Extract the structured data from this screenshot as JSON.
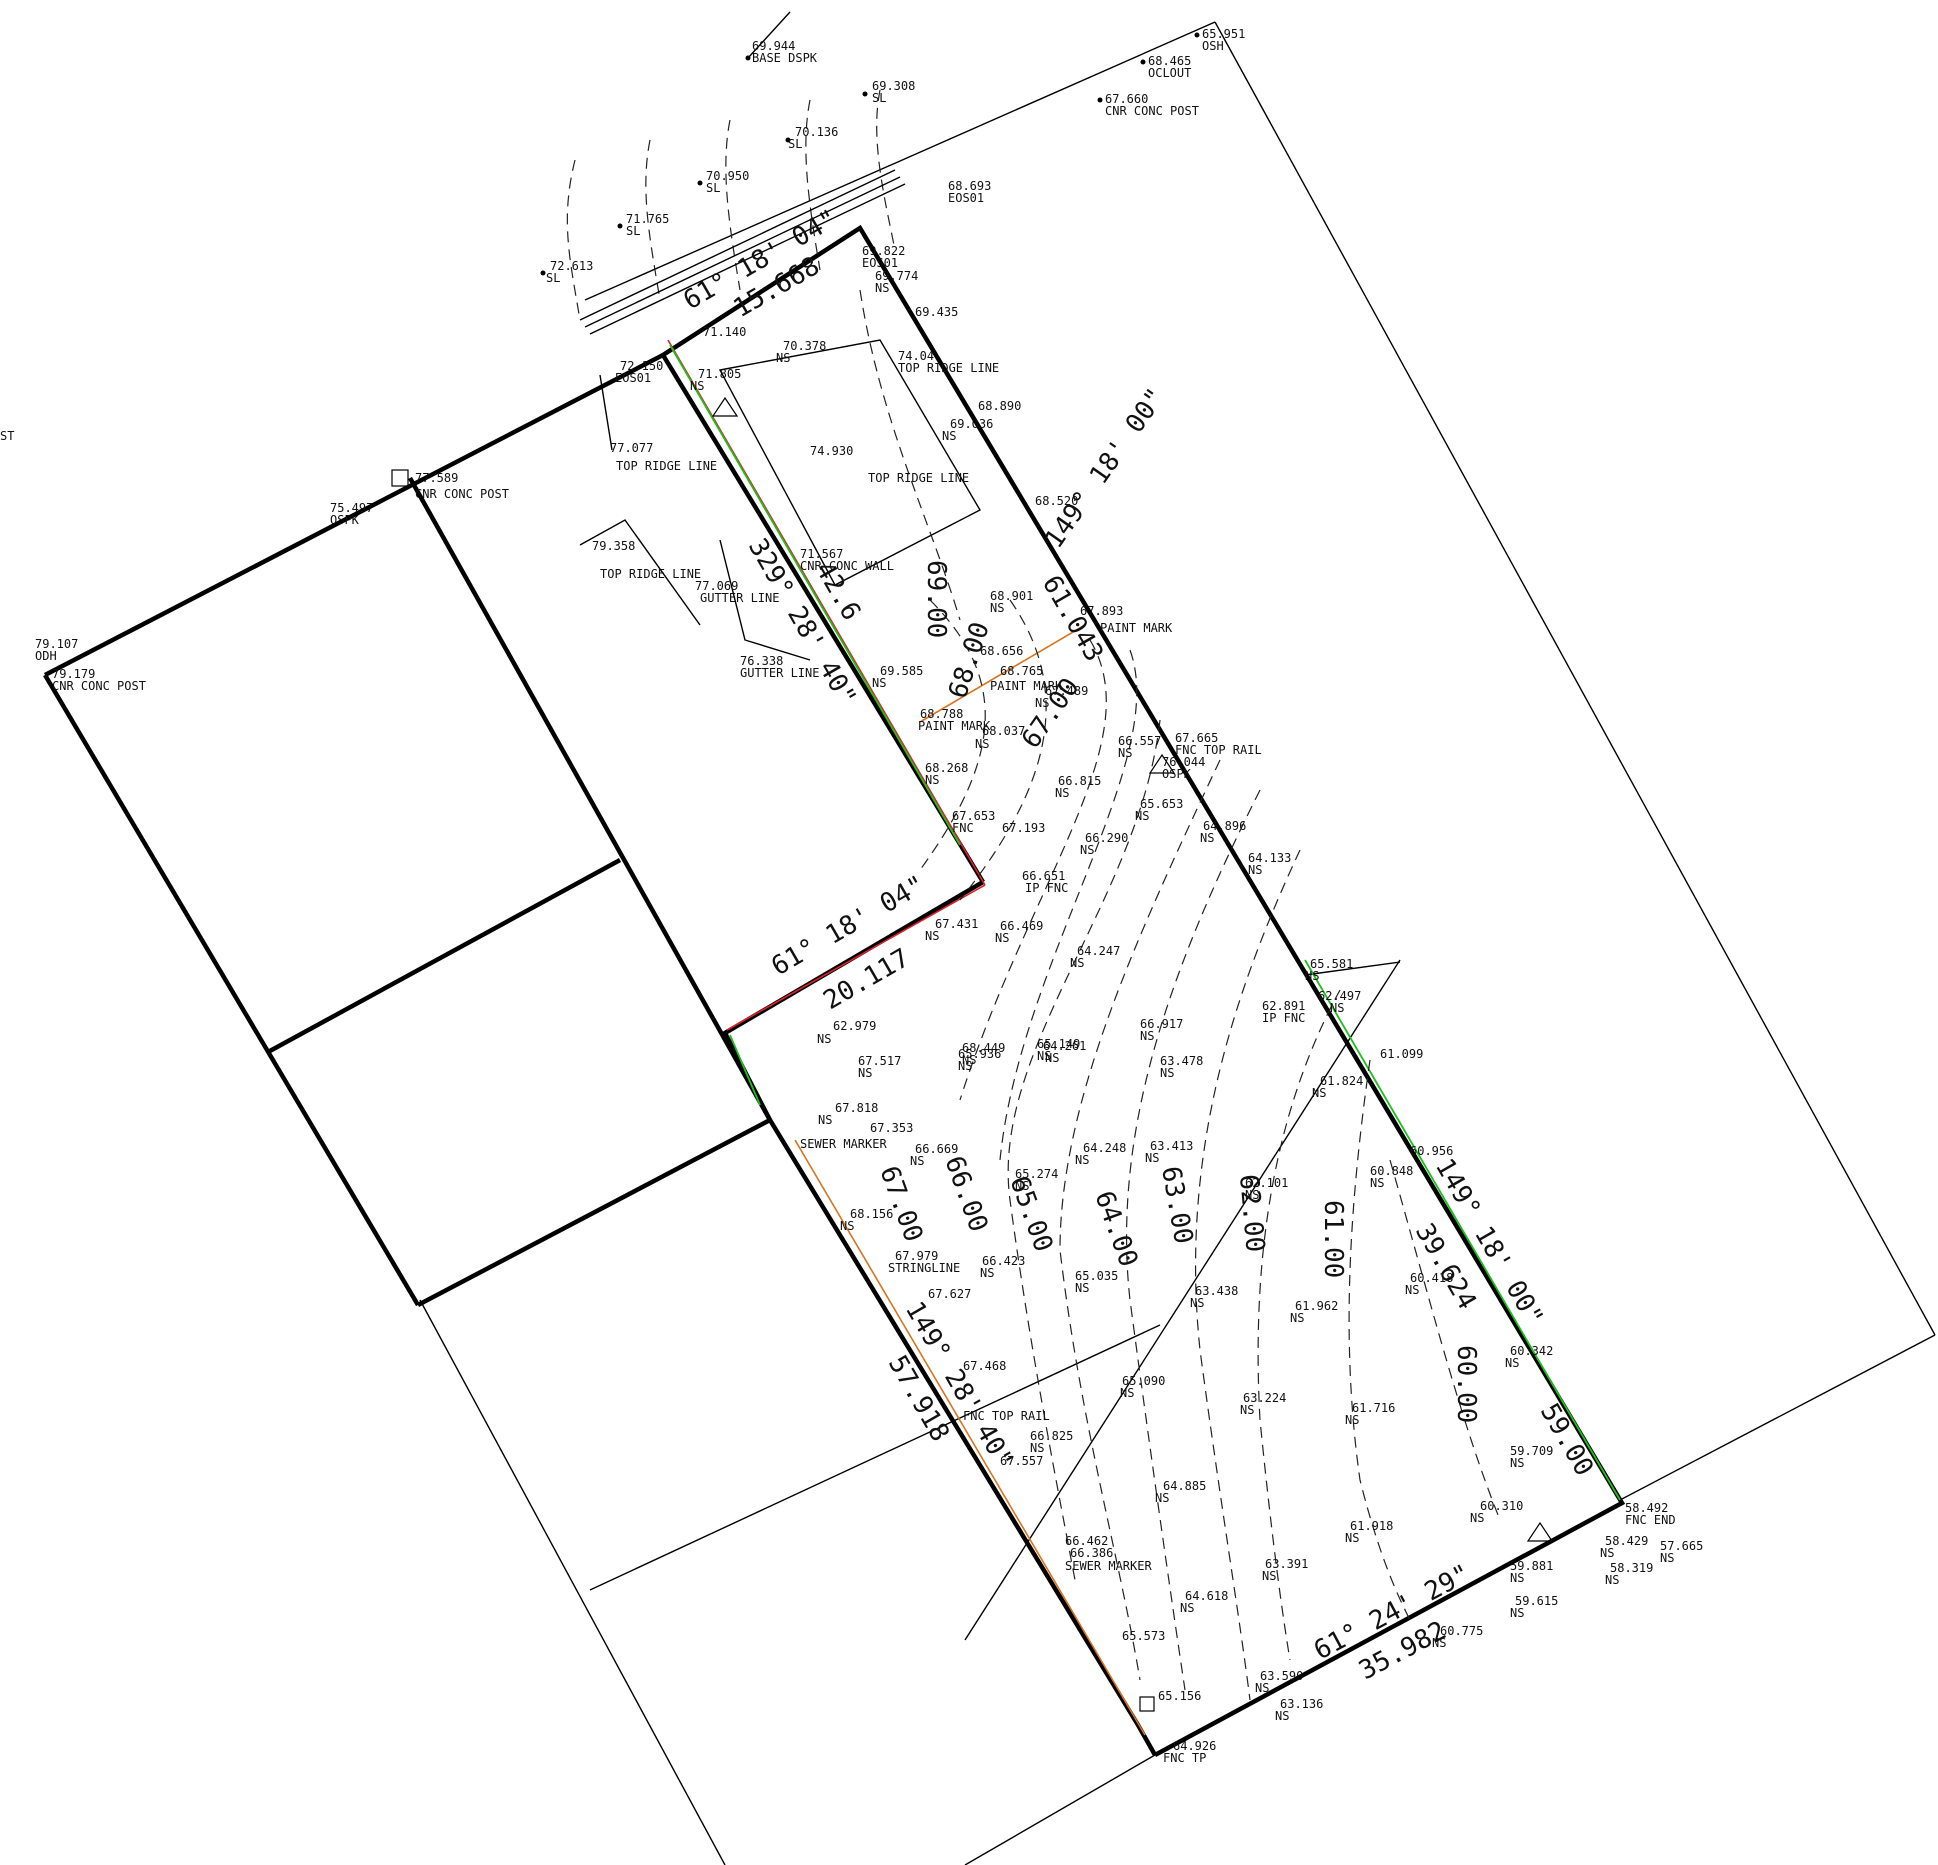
{
  "points": [
    {
      "value": "65.951",
      "code": "OSH"
    },
    {
      "value": "68.465",
      "code": "OCLOUT"
    },
    {
      "value": "67.660",
      "code": "CNR CONC POST"
    },
    {
      "value": "69.944",
      "code": "BASE DSPK"
    },
    {
      "value": "69.308",
      "code": "SL"
    },
    {
      "value": "70.136",
      "code": "SL"
    },
    {
      "value": "70.950",
      "code": "SL"
    },
    {
      "value": "71.765",
      "code": "SL"
    },
    {
      "value": "72.613",
      "code": "SL"
    },
    {
      "value": "68.693",
      "code": "EOS01"
    },
    {
      "value": "69.822",
      "code": "EOS01"
    },
    {
      "value": "69.774",
      "code": "NS"
    },
    {
      "value": "72.150",
      "code": "EOS01"
    },
    {
      "value": "71.805",
      "code": "NS"
    },
    {
      "value": "74.04",
      "code": "TOP RIDGE LINE"
    },
    {
      "value": "68.890",
      "code": ""
    },
    {
      "value": "69.036",
      "code": "NS"
    },
    {
      "value": "74.930",
      "code": "TOP RIDGE LINE"
    },
    {
      "value": "77.077",
      "code": "TOP RIDGE LINE"
    },
    {
      "value": "77.589",
      "code": "CNR CONC POST"
    },
    {
      "value": "75.497",
      "code": "OSPK"
    },
    {
      "value": "79.358",
      "code": "TOP RIDGE LINE"
    },
    {
      "value": "79.107",
      "code": "ODH"
    },
    {
      "value": "79.179",
      "code": "CNR CONC POST"
    },
    {
      "value": "77.069",
      "code": "GUTTER LINE"
    },
    {
      "value": "76.338",
      "code": "GUTTER LINE"
    },
    {
      "value": "71.567",
      "code": "CNR CONC WALL"
    },
    {
      "value": "68.520",
      "code": ""
    },
    {
      "value": "68.901",
      "code": "NS"
    },
    {
      "value": "69.585",
      "code": "NS"
    },
    {
      "value": "68.656",
      "code": ""
    },
    {
      "value": "68.765",
      "code": "PAINT MARK"
    },
    {
      "value": "67.489",
      "code": "NS"
    },
    {
      "value": "68.788",
      "code": "PAINT MARK"
    },
    {
      "value": "68.037",
      "code": "NS"
    },
    {
      "value": "67.893",
      "code": "PAINT MARK"
    },
    {
      "value": "66.557",
      "code": "NS"
    },
    {
      "value": "67.665",
      "code": "FNC TOP RAIL"
    },
    {
      "value": "76.044",
      "code": "OSPK"
    },
    {
      "value": "68.268",
      "code": "NS"
    },
    {
      "value": "66.815",
      "code": "NS"
    },
    {
      "value": "65.653",
      "code": "NS"
    },
    {
      "value": "67.653",
      "code": "FNC"
    },
    {
      "value": "67.193",
      "code": ""
    },
    {
      "value": "64.896",
      "code": "NS"
    },
    {
      "value": "66.290",
      "code": "NS"
    },
    {
      "value": "64.133",
      "code": "NS"
    },
    {
      "value": "66.651",
      "code": "IP FNC"
    },
    {
      "value": "67.431",
      "code": "NS"
    },
    {
      "value": "66.469",
      "code": "NS"
    },
    {
      "value": "64.247",
      "code": "NS"
    },
    {
      "value": "65.581",
      "code": "NS"
    },
    {
      "value": "62.497",
      "code": "NS"
    },
    {
      "value": "62.891",
      "code": "IP FNC"
    },
    {
      "value": "66.917",
      "code": "NS"
    },
    {
      "value": "62.979",
      "code": "NS"
    },
    {
      "value": "64.261",
      "code": "NS"
    },
    {
      "value": "68.449",
      "code": "NS"
    },
    {
      "value": "61.099",
      "code": ""
    },
    {
      "value": "65.936",
      "code": "NS"
    },
    {
      "value": "65.149",
      "code": "NS"
    },
    {
      "value": "67.517",
      "code": "NS"
    },
    {
      "value": "63.478",
      "code": "NS"
    },
    {
      "value": "61.824",
      "code": "NS"
    },
    {
      "value": "67.818",
      "code": "NS"
    },
    {
      "value": "67.353",
      "code": "SEWER MARKER"
    },
    {
      "value": "66.669",
      "code": "NS"
    },
    {
      "value": "64.248",
      "code": "NS"
    },
    {
      "value": "63.413",
      "code": "NS"
    },
    {
      "value": "60.956",
      "code": ""
    },
    {
      "value": "60.848",
      "code": "NS"
    },
    {
      "value": "65.274",
      "code": "NS"
    },
    {
      "value": "62.101",
      "code": "NS"
    },
    {
      "value": "68.156",
      "code": "NS"
    },
    {
      "value": "67.979",
      "code": "STRINGLINE"
    },
    {
      "value": "66.423",
      "code": "NS"
    },
    {
      "value": "65.035",
      "code": "NS"
    },
    {
      "value": "60.418",
      "code": "NS"
    },
    {
      "value": "67.627",
      "code": ""
    },
    {
      "value": "63.438",
      "code": "NS"
    },
    {
      "value": "61.962",
      "code": "NS"
    },
    {
      "value": "67.468",
      "code": "FNC TOP RAIL"
    },
    {
      "value": "65.090",
      "code": "NS"
    },
    {
      "value": "60.342",
      "code": "NS"
    },
    {
      "value": "63.224",
      "code": "NS"
    },
    {
      "value": "61.716",
      "code": "NS"
    },
    {
      "value": "66.825",
      "code": "NS"
    },
    {
      "value": "67.557",
      "code": ""
    },
    {
      "value": "59.709",
      "code": "NS"
    },
    {
      "value": "64.885",
      "code": "NS"
    },
    {
      "value": "60.310",
      "code": "NS"
    },
    {
      "value": "61.918",
      "code": "NS"
    },
    {
      "value": "58.492",
      "code": "FNC END"
    },
    {
      "value": "66.462",
      "code": ""
    },
    {
      "value": "66.386",
      "code": "SEWER MARKER"
    },
    {
      "value": "63.391",
      "code": "NS"
    },
    {
      "value": "59.881",
      "code": "NS"
    },
    {
      "value": "58.429",
      "code": "NS"
    },
    {
      "value": "57.665",
      "code": "NS"
    },
    {
      "value": "58.319",
      "code": "NS"
    },
    {
      "value": "59.615",
      "code": "NS"
    },
    {
      "value": "64.618",
      "code": "NS"
    },
    {
      "value": "65.573",
      "code": ""
    },
    {
      "value": "60.775",
      "code": "NS"
    },
    {
      "value": "63.590",
      "code": "NS"
    },
    {
      "value": "65.156",
      "code": ""
    },
    {
      "value": "63.136",
      "code": "NS"
    },
    {
      "value": "64.926",
      "code": "FNC TP"
    },
    {
      "value": "69.435",
      "code": ""
    },
    {
      "value": "70.378",
      "code": "NS"
    },
    {
      "value": "71.140",
      "code": ""
    }
  ],
  "dimensions": [
    {
      "text": "61° 18' 04\""
    },
    {
      "text": "15.668"
    },
    {
      "text": "329° 28' 40\""
    },
    {
      "text": "42.6"
    },
    {
      "text": "149° 18' 00\""
    },
    {
      "text": "61.043"
    },
    {
      "text": "61° 18' 04\""
    },
    {
      "text": "20.117"
    },
    {
      "text": "149° 18' 00\""
    },
    {
      "text": "39.624"
    },
    {
      "text": "149° 28' 40\""
    },
    {
      "text": "57.918"
    },
    {
      "text": "61° 24' 29\""
    },
    {
      "text": "35.982"
    }
  ],
  "contours": [
    "69.00",
    "68.00",
    "67.00",
    "67.00",
    "66.00",
    "65.00",
    "64.00",
    "63.00",
    "62.00",
    "61.00",
    "60.00",
    "59.00"
  ],
  "edge_labels": [
    "ST"
  ]
}
